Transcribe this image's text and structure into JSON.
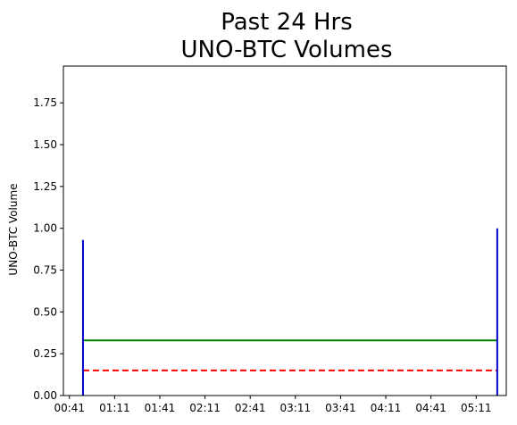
{
  "chart_data": {
    "type": "line",
    "title": [
      "Past 24 Hrs",
      "UNO-BTC Volumes"
    ],
    "xlabel": "",
    "ylabel": "UNO-BTC Volume",
    "x_tick_labels": [
      "00:41",
      "01:11",
      "01:41",
      "02:11",
      "02:41",
      "03:11",
      "03:41",
      "04:11",
      "04:41",
      "05:11"
    ],
    "y_ticks": [
      0.0,
      0.25,
      0.5,
      0.75,
      1.0,
      1.25,
      1.5,
      1.75
    ],
    "y_tick_labels": [
      "0.00",
      "0.25",
      "0.50",
      "0.75",
      "1.00",
      "1.25",
      "1.50",
      "1.75"
    ],
    "ylim": [
      0,
      1.97
    ],
    "xlim": [
      "00:37",
      "05:31"
    ],
    "grid": false,
    "legend": "none",
    "volume_bars": [
      {
        "x": "00:50",
        "value": 0.93
      },
      {
        "x": "05:25",
        "value": 1.0
      }
    ],
    "series": [
      {
        "style": "solid",
        "color": "#008000",
        "x": [
          "00:50",
          "05:25"
        ],
        "values": [
          0.33,
          0.33
        ]
      },
      {
        "style": "dashed",
        "color": "#ff0000",
        "x": [
          "00:50",
          "05:25"
        ],
        "values": [
          0.15,
          0.15
        ]
      }
    ],
    "bar_color": "#0000cc"
  }
}
